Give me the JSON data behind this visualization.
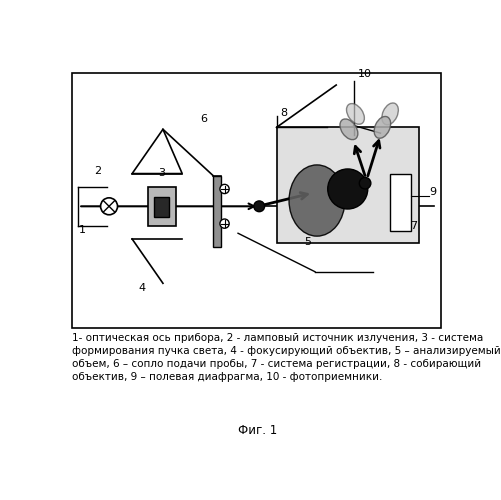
{
  "caption_text": "1- оптическая ось прибора, 2 - ламповый источник излучения, 3 - система\nформирования пучка света, 4 - фокусирующий объектив, 5 – анализируемый\nобъем, 6 – сопло подачи пробы, 7 - система регистрации, 8 - собирающий\nобъектив, 9 – полевая диафрагма, 10 - фотоприемники.",
  "fig_label": "Фиг. 1",
  "label_fontsize": 7.5,
  "fig_label_fontsize": 8.5
}
